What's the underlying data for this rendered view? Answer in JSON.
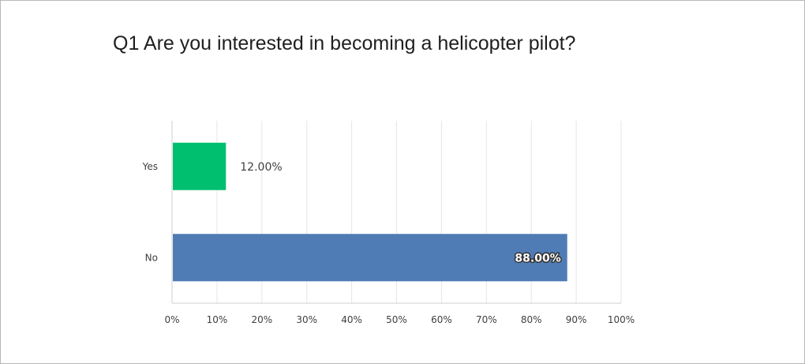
{
  "question_title": "Q1 Are you interested in becoming a helicopter pilot?",
  "chart_data": {
    "type": "bar",
    "orientation": "horizontal",
    "categories": [
      "Yes",
      "No"
    ],
    "values": [
      12.0,
      88.0
    ],
    "value_labels": [
      "12.00%",
      "88.00%"
    ],
    "colors": [
      "#00BF6F",
      "#507CB6"
    ],
    "xlim": [
      0,
      100
    ],
    "x_ticks": [
      "0%",
      "10%",
      "20%",
      "30%",
      "40%",
      "50%",
      "60%",
      "70%",
      "80%",
      "90%",
      "100%"
    ],
    "grid": true,
    "legend": "none"
  }
}
